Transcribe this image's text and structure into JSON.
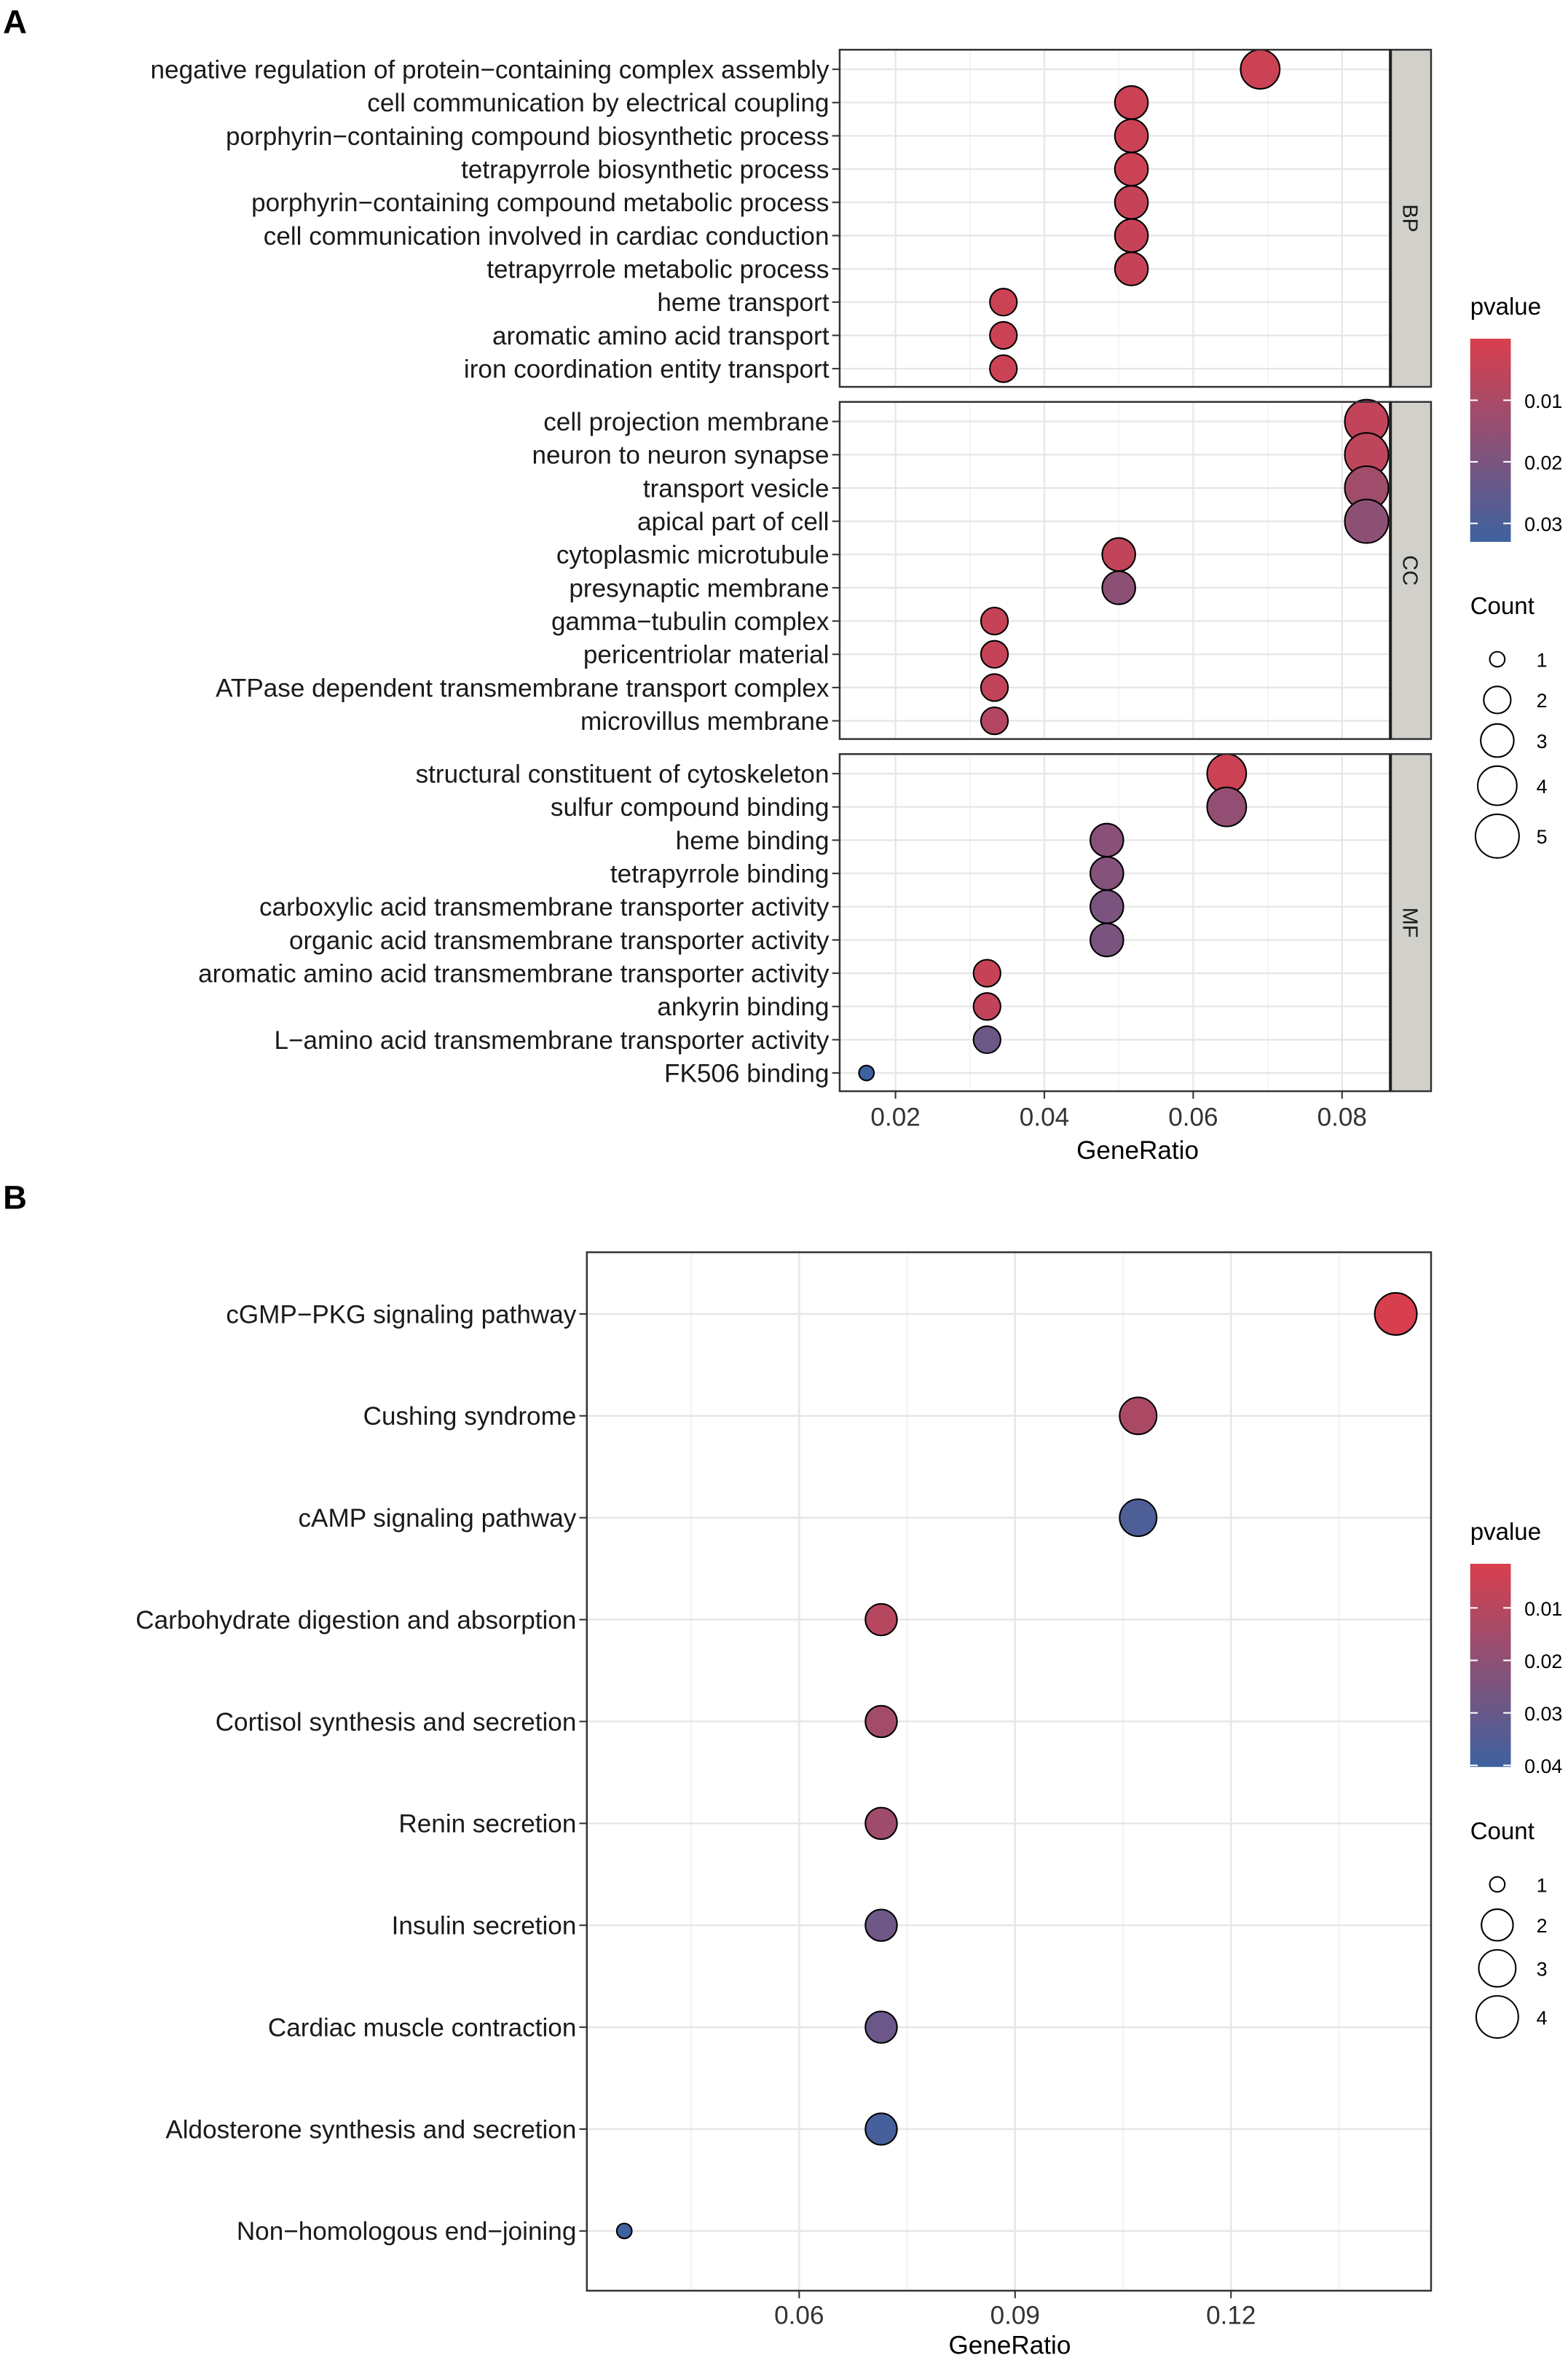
{
  "chart_data": [
    {
      "panel_label": "A",
      "type": "scatter",
      "subtype": "dot-plot (faceted)",
      "xlabel": "GeneRatio",
      "xlim": [
        0.0125,
        0.0865
      ],
      "xticks": [
        0.02,
        0.04,
        0.06,
        0.08
      ],
      "xtick_labels": [
        "0.02",
        "0.04",
        "0.06",
        "0.08"
      ],
      "grid": true,
      "legend_position": "right",
      "color_legend": {
        "title": "pvalue",
        "range": [
          0.0,
          0.033
        ],
        "ticks": [
          0.01,
          0.02,
          0.03
        ],
        "tick_labels": [
          "0.01",
          "0.02",
          "0.03"
        ],
        "low_color": "#D93F4D",
        "high_color": "#3D62A0"
      },
      "size_legend": {
        "title": "Count",
        "values": [
          1,
          2,
          3,
          4,
          5
        ],
        "labels": [
          "1",
          "2",
          "3",
          "4",
          "5"
        ]
      },
      "facets": [
        {
          "name": "BP",
          "terms": [
            {
              "term": "negative regulation of protein−containing complex assembly",
              "gene_ratio": 0.069,
              "count": 4,
              "pvalue": 0.003
            },
            {
              "term": "cell communication by electrical coupling",
              "gene_ratio": 0.0517,
              "count": 3,
              "pvalue": 0.003
            },
            {
              "term": "porphyrin−containing compound biosynthetic process",
              "gene_ratio": 0.0517,
              "count": 3,
              "pvalue": 0.003
            },
            {
              "term": "tetrapyrrole biosynthetic process",
              "gene_ratio": 0.0517,
              "count": 3,
              "pvalue": 0.003
            },
            {
              "term": "porphyrin−containing compound metabolic process",
              "gene_ratio": 0.0517,
              "count": 3,
              "pvalue": 0.004
            },
            {
              "term": "cell communication involved in cardiac conduction",
              "gene_ratio": 0.0517,
              "count": 3,
              "pvalue": 0.004
            },
            {
              "term": "tetrapyrrole metabolic process",
              "gene_ratio": 0.0517,
              "count": 3,
              "pvalue": 0.004
            },
            {
              "term": "heme transport",
              "gene_ratio": 0.0345,
              "count": 2,
              "pvalue": 0.003
            },
            {
              "term": "aromatic amino acid transport",
              "gene_ratio": 0.0345,
              "count": 2,
              "pvalue": 0.003
            },
            {
              "term": "iron coordination entity transport",
              "gene_ratio": 0.0345,
              "count": 2,
              "pvalue": 0.003
            }
          ]
        },
        {
          "name": "CC",
          "terms": [
            {
              "term": "cell projection membrane",
              "gene_ratio": 0.0833,
              "count": 5,
              "pvalue": 0.005
            },
            {
              "term": "neuron to neuron synapse",
              "gene_ratio": 0.0833,
              "count": 5,
              "pvalue": 0.006
            },
            {
              "term": "transport vesicle",
              "gene_ratio": 0.0833,
              "count": 5,
              "pvalue": 0.012
            },
            {
              "term": "apical part of cell",
              "gene_ratio": 0.0833,
              "count": 5,
              "pvalue": 0.016
            },
            {
              "term": "cytoplasmic microtubule",
              "gene_ratio": 0.05,
              "count": 3,
              "pvalue": 0.005
            },
            {
              "term": "presynaptic membrane",
              "gene_ratio": 0.05,
              "count": 3,
              "pvalue": 0.016
            },
            {
              "term": "gamma−tubulin complex",
              "gene_ratio": 0.0333,
              "count": 2,
              "pvalue": 0.004
            },
            {
              "term": "pericentriolar material",
              "gene_ratio": 0.0333,
              "count": 2,
              "pvalue": 0.004
            },
            {
              "term": "ATPase dependent transmembrane transport complex",
              "gene_ratio": 0.0333,
              "count": 2,
              "pvalue": 0.005
            },
            {
              "term": "microvillus membrane",
              "gene_ratio": 0.0333,
              "count": 2,
              "pvalue": 0.008
            }
          ]
        },
        {
          "name": "MF",
          "terms": [
            {
              "term": "structural constituent of cytoskeleton",
              "gene_ratio": 0.0645,
              "count": 4,
              "pvalue": 0.003
            },
            {
              "term": "sulfur compound binding",
              "gene_ratio": 0.0645,
              "count": 4,
              "pvalue": 0.015
            },
            {
              "term": "heme binding",
              "gene_ratio": 0.0484,
              "count": 3,
              "pvalue": 0.017
            },
            {
              "term": "tetrapyrrole binding",
              "gene_ratio": 0.0484,
              "count": 3,
              "pvalue": 0.018
            },
            {
              "term": "carboxylic acid transmembrane transporter activity",
              "gene_ratio": 0.0484,
              "count": 3,
              "pvalue": 0.02
            },
            {
              "term": "organic acid transmembrane transporter activity",
              "gene_ratio": 0.0484,
              "count": 3,
              "pvalue": 0.02
            },
            {
              "term": "aromatic amino acid transmembrane transporter activity",
              "gene_ratio": 0.0323,
              "count": 2,
              "pvalue": 0.004
            },
            {
              "term": "ankyrin binding",
              "gene_ratio": 0.0323,
              "count": 2,
              "pvalue": 0.005
            },
            {
              "term": "L−amino acid transmembrane transporter activity",
              "gene_ratio": 0.0323,
              "count": 2,
              "pvalue": 0.023
            },
            {
              "term": "FK506 binding",
              "gene_ratio": 0.0161,
              "count": 1,
              "pvalue": 0.033
            }
          ]
        }
      ]
    },
    {
      "panel_label": "B",
      "type": "scatter",
      "subtype": "dot-plot",
      "xlabel": "GeneRatio",
      "xlim": [
        0.0305,
        0.1478
      ],
      "xticks": [
        0.06,
        0.09,
        0.12
      ],
      "xtick_labels": [
        "0.06",
        "0.09",
        "0.12"
      ],
      "grid": true,
      "legend_position": "right",
      "color_legend": {
        "title": "pvalue",
        "range": [
          0.0016,
          0.0403
        ],
        "ticks": [
          0.01,
          0.02,
          0.03,
          0.04
        ],
        "tick_labels": [
          "0.01",
          "0.02",
          "0.03",
          "0.04"
        ],
        "low_color": "#D93F4D",
        "high_color": "#3D62A0"
      },
      "size_legend": {
        "title": "Count",
        "values": [
          1,
          2,
          3,
          4
        ],
        "labels": [
          "1",
          "2",
          "3",
          "4"
        ]
      },
      "terms": [
        {
          "term": "cGMP−PKG signaling pathway",
          "gene_ratio": 0.1429,
          "count": 4,
          "pvalue": 0.002
        },
        {
          "term": "Cushing syndrome",
          "gene_ratio": 0.1071,
          "count": 3,
          "pvalue": 0.013
        },
        {
          "term": "cAMP signaling pathway",
          "gene_ratio": 0.1071,
          "count": 3,
          "pvalue": 0.036
        },
        {
          "term": "Carbohydrate digestion and absorption",
          "gene_ratio": 0.0714,
          "count": 2,
          "pvalue": 0.01
        },
        {
          "term": "Cortisol synthesis and secretion",
          "gene_ratio": 0.0714,
          "count": 2,
          "pvalue": 0.015
        },
        {
          "term": "Renin secretion",
          "gene_ratio": 0.0714,
          "count": 2,
          "pvalue": 0.016
        },
        {
          "term": "Insulin secretion",
          "gene_ratio": 0.0714,
          "count": 2,
          "pvalue": 0.028
        },
        {
          "term": "Cardiac muscle contraction",
          "gene_ratio": 0.0714,
          "count": 2,
          "pvalue": 0.029
        },
        {
          "term": "Aldosterone synthesis and secretion",
          "gene_ratio": 0.0714,
          "count": 2,
          "pvalue": 0.038
        },
        {
          "term": "Non−homologous end−joining",
          "gene_ratio": 0.0357,
          "count": 1,
          "pvalue": 0.04
        }
      ]
    }
  ]
}
